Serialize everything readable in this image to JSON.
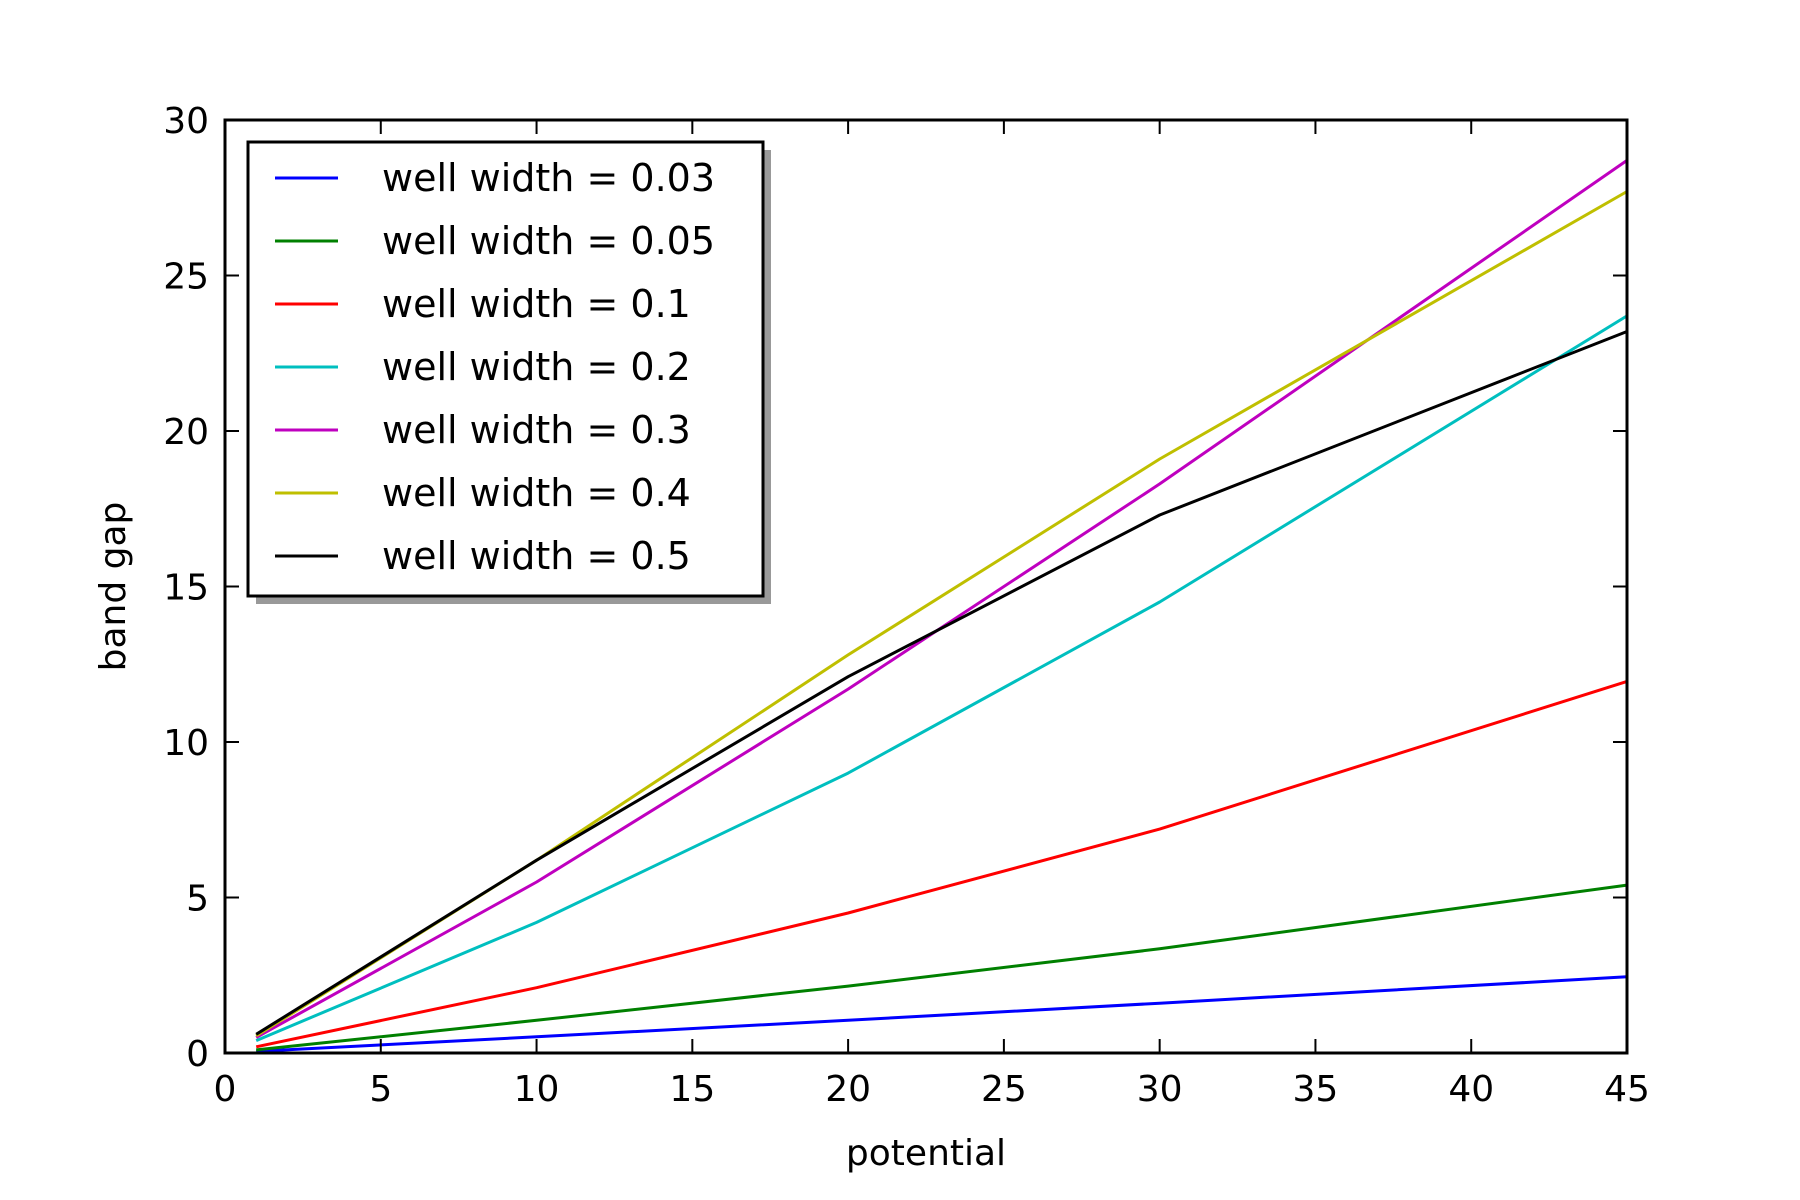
{
  "chart_data": {
    "type": "line",
    "xlabel": "potential",
    "ylabel": "band gap",
    "xlim": [
      0,
      45
    ],
    "ylim": [
      0,
      30
    ],
    "xticks": [
      0,
      5,
      10,
      15,
      20,
      25,
      30,
      35,
      40,
      45
    ],
    "yticks": [
      0,
      5,
      10,
      15,
      20,
      25,
      30
    ],
    "grid": false,
    "legend_position": "top-left",
    "x": [
      1,
      10,
      20,
      30,
      45
    ],
    "series": [
      {
        "name": "well width = 0.03",
        "color": "#0000ff",
        "values": [
          0.05,
          0.52,
          1.05,
          1.6,
          2.45
        ]
      },
      {
        "name": "well width = 0.05",
        "color": "#008000",
        "values": [
          0.1,
          1.05,
          2.15,
          3.35,
          5.4
        ]
      },
      {
        "name": "well width = 0.1",
        "color": "#ff0000",
        "values": [
          0.2,
          2.1,
          4.5,
          7.2,
          11.95
        ]
      },
      {
        "name": "well width = 0.2",
        "color": "#00bfbf",
        "values": [
          0.4,
          4.2,
          9.0,
          14.5,
          23.7
        ]
      },
      {
        "name": "well width = 0.3",
        "color": "#bf00bf",
        "values": [
          0.5,
          5.5,
          11.7,
          18.3,
          28.7
        ]
      },
      {
        "name": "well width = 0.4",
        "color": "#bfbf00",
        "values": [
          0.55,
          6.2,
          12.8,
          19.1,
          27.7
        ]
      },
      {
        "name": "well width = 0.5",
        "color": "#000000",
        "values": [
          0.6,
          6.2,
          12.1,
          17.3,
          23.2
        ]
      }
    ]
  }
}
